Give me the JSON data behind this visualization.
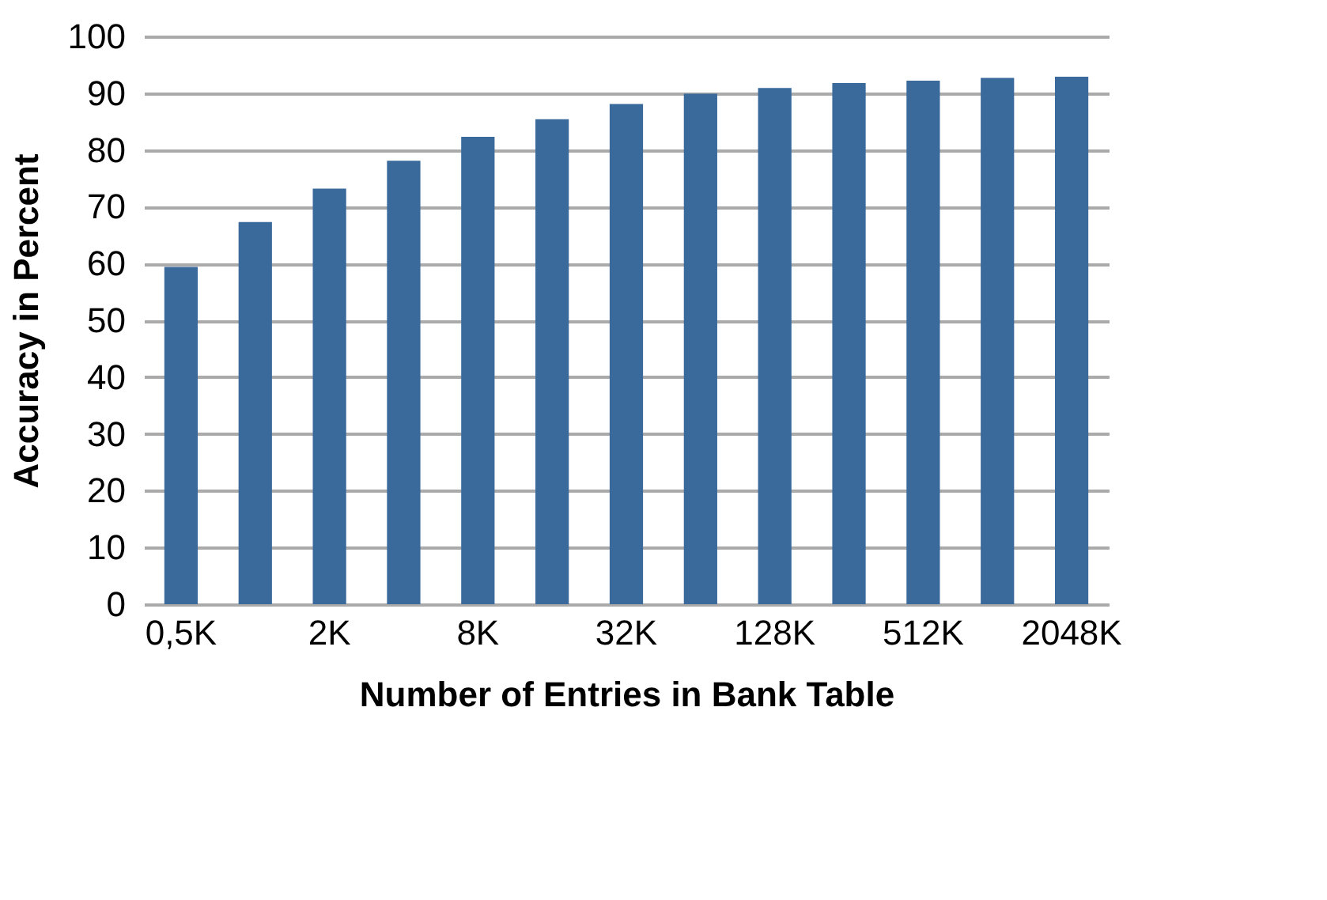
{
  "chart_data": {
    "type": "bar",
    "xlabel": "Number of Entries in Bank Table",
    "ylabel": "Accuracy in Percent",
    "categories": [
      "0,5K",
      null,
      "2K",
      null,
      "8K",
      null,
      "32K",
      null,
      "128K",
      null,
      "512K",
      null,
      "2048K"
    ],
    "values": [
      59.4,
      67.3,
      73.2,
      78.1,
      82.3,
      85.4,
      88.1,
      89.9,
      90.9,
      91.8,
      92.2,
      92.7,
      92.9
    ],
    "color": "#3a6a9c",
    "ylim": [
      0,
      100
    ],
    "yticks": [
      0,
      10,
      20,
      30,
      40,
      50,
      60,
      70,
      80,
      90,
      100
    ],
    "grid": "y"
  }
}
